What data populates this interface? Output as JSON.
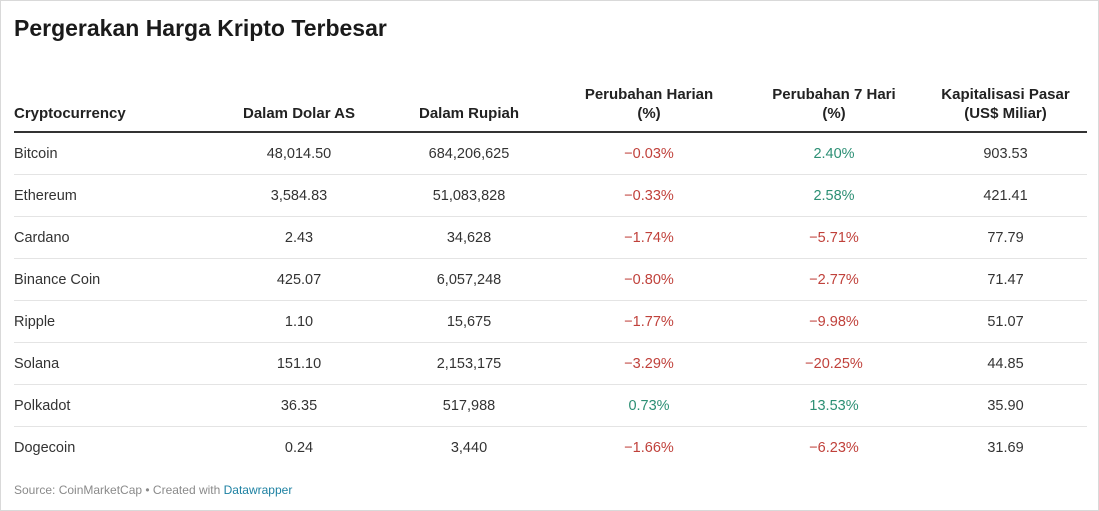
{
  "title": "Pergerakan Harga Kripto Terbesar",
  "chart_data": {
    "type": "table",
    "title": "Pergerakan Harga Kripto Terbesar",
    "columns": [
      "Cryptocurrency",
      "Dalam Dolar AS",
      "Dalam Rupiah",
      "Perubahan Harian (%)",
      "Perubahan 7 Hari (%)",
      "Kapitalisasi Pasar (US$ Miliar)"
    ],
    "rows": [
      {
        "name": "Bitcoin",
        "usd": "48,014.50",
        "idr": "684,206,625",
        "daily": "−0.03%",
        "weekly": "2.40%",
        "mcap": "903.53"
      },
      {
        "name": "Ethereum",
        "usd": "3,584.83",
        "idr": "51,083,828",
        "daily": "−0.33%",
        "weekly": "2.58%",
        "mcap": "421.41"
      },
      {
        "name": "Cardano",
        "usd": "2.43",
        "idr": "34,628",
        "daily": "−1.74%",
        "weekly": "−5.71%",
        "mcap": "77.79"
      },
      {
        "name": "Binance Coin",
        "usd": "425.07",
        "idr": "6,057,248",
        "daily": "−0.80%",
        "weekly": "−2.77%",
        "mcap": "71.47"
      },
      {
        "name": "Ripple",
        "usd": "1.10",
        "idr": "15,675",
        "daily": "−1.77%",
        "weekly": "−9.98%",
        "mcap": "51.07"
      },
      {
        "name": "Solana",
        "usd": "151.10",
        "idr": "2,153,175",
        "daily": "−3.29%",
        "weekly": "−20.25%",
        "mcap": "44.85"
      },
      {
        "name": "Polkadot",
        "usd": "36.35",
        "idr": "517,988",
        "daily": "0.73%",
        "weekly": "13.53%",
        "mcap": "35.90"
      },
      {
        "name": "Dogecoin",
        "usd": "0.24",
        "idr": "3,440",
        "daily": "−1.66%",
        "weekly": "−6.23%",
        "mcap": "31.69"
      }
    ]
  },
  "colors": {
    "negative": "#c0413b",
    "positive": "#2c8f74",
    "link": "#1d81a2"
  },
  "footer": {
    "source": "Source: CoinMarketCap • Created with ",
    "link": "Datawrapper"
  }
}
